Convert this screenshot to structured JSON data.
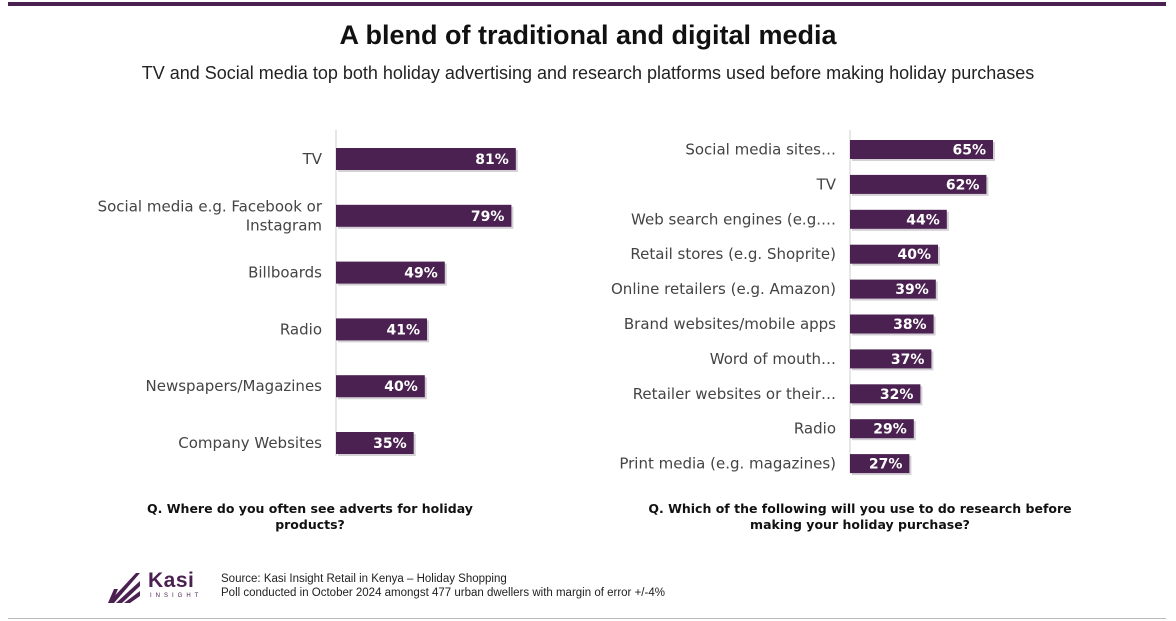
{
  "title": "A blend of traditional and digital media",
  "subtitle": "TV and Social media top both holiday advertising and research platforms used before making holiday purchases",
  "colors": {
    "bar": "#4a2150",
    "value_text": "#ffffff",
    "axis": "#cccccc"
  },
  "chart_data": [
    {
      "type": "bar",
      "orientation": "horizontal",
      "title": "Q. Where do you often see adverts for holiday products?",
      "categories": [
        "TV",
        "Social media e.g. Facebook or Instagram",
        "Billboards",
        "Radio",
        "Newspapers/Magazines",
        "Company Websites"
      ],
      "category_lines": [
        [
          "TV"
        ],
        [
          "Social media e.g. Facebook or",
          "Instagram"
        ],
        [
          "Billboards"
        ],
        [
          "Radio"
        ],
        [
          "Newspapers/Magazines"
        ],
        [
          "Company Websites"
        ]
      ],
      "values": [
        81,
        79,
        49,
        41,
        40,
        35
      ],
      "labels": [
        "81%",
        "79%",
        "49%",
        "41%",
        "40%",
        "35%"
      ],
      "xlim": [
        0,
        100
      ],
      "grid": false,
      "legend": "none"
    },
    {
      "type": "bar",
      "orientation": "horizontal",
      "title": "Q. Which of the following will you use to do research before making your holiday purchase?",
      "categories": [
        "Social media sites…",
        "TV",
        "Web search engines (e.g.…",
        "Retail stores (e.g. Shoprite)",
        "Online retailers (e.g. Amazon)",
        "Brand websites/mobile apps",
        "Word of mouth…",
        "Retailer websites or their…",
        "Radio",
        "Print media (e.g. magazines)"
      ],
      "values": [
        65,
        62,
        44,
        40,
        39,
        38,
        37,
        32,
        29,
        27
      ],
      "labels": [
        "65%",
        "62%",
        "44%",
        "40%",
        "39%",
        "38%",
        "37%",
        "32%",
        "29%",
        "27%"
      ],
      "xlim": [
        0,
        100
      ],
      "grid": false,
      "legend": "none"
    }
  ],
  "questions": {
    "left_line1": "Q. Where do you often see adverts for holiday",
    "left_line2": "products?",
    "right_line1": "Q. Which of the following will you use to do research before",
    "right_line2": "making your holiday purchase?"
  },
  "logo": {
    "name": "Kasi",
    "sub": "INSIGHT"
  },
  "source": {
    "line1": "Source: Kasi Insight Retail in Kenya – Holiday Shopping",
    "line2": "Poll conducted in October 2024 amongst 477 urban dwellers with margin of error +/-4%"
  }
}
